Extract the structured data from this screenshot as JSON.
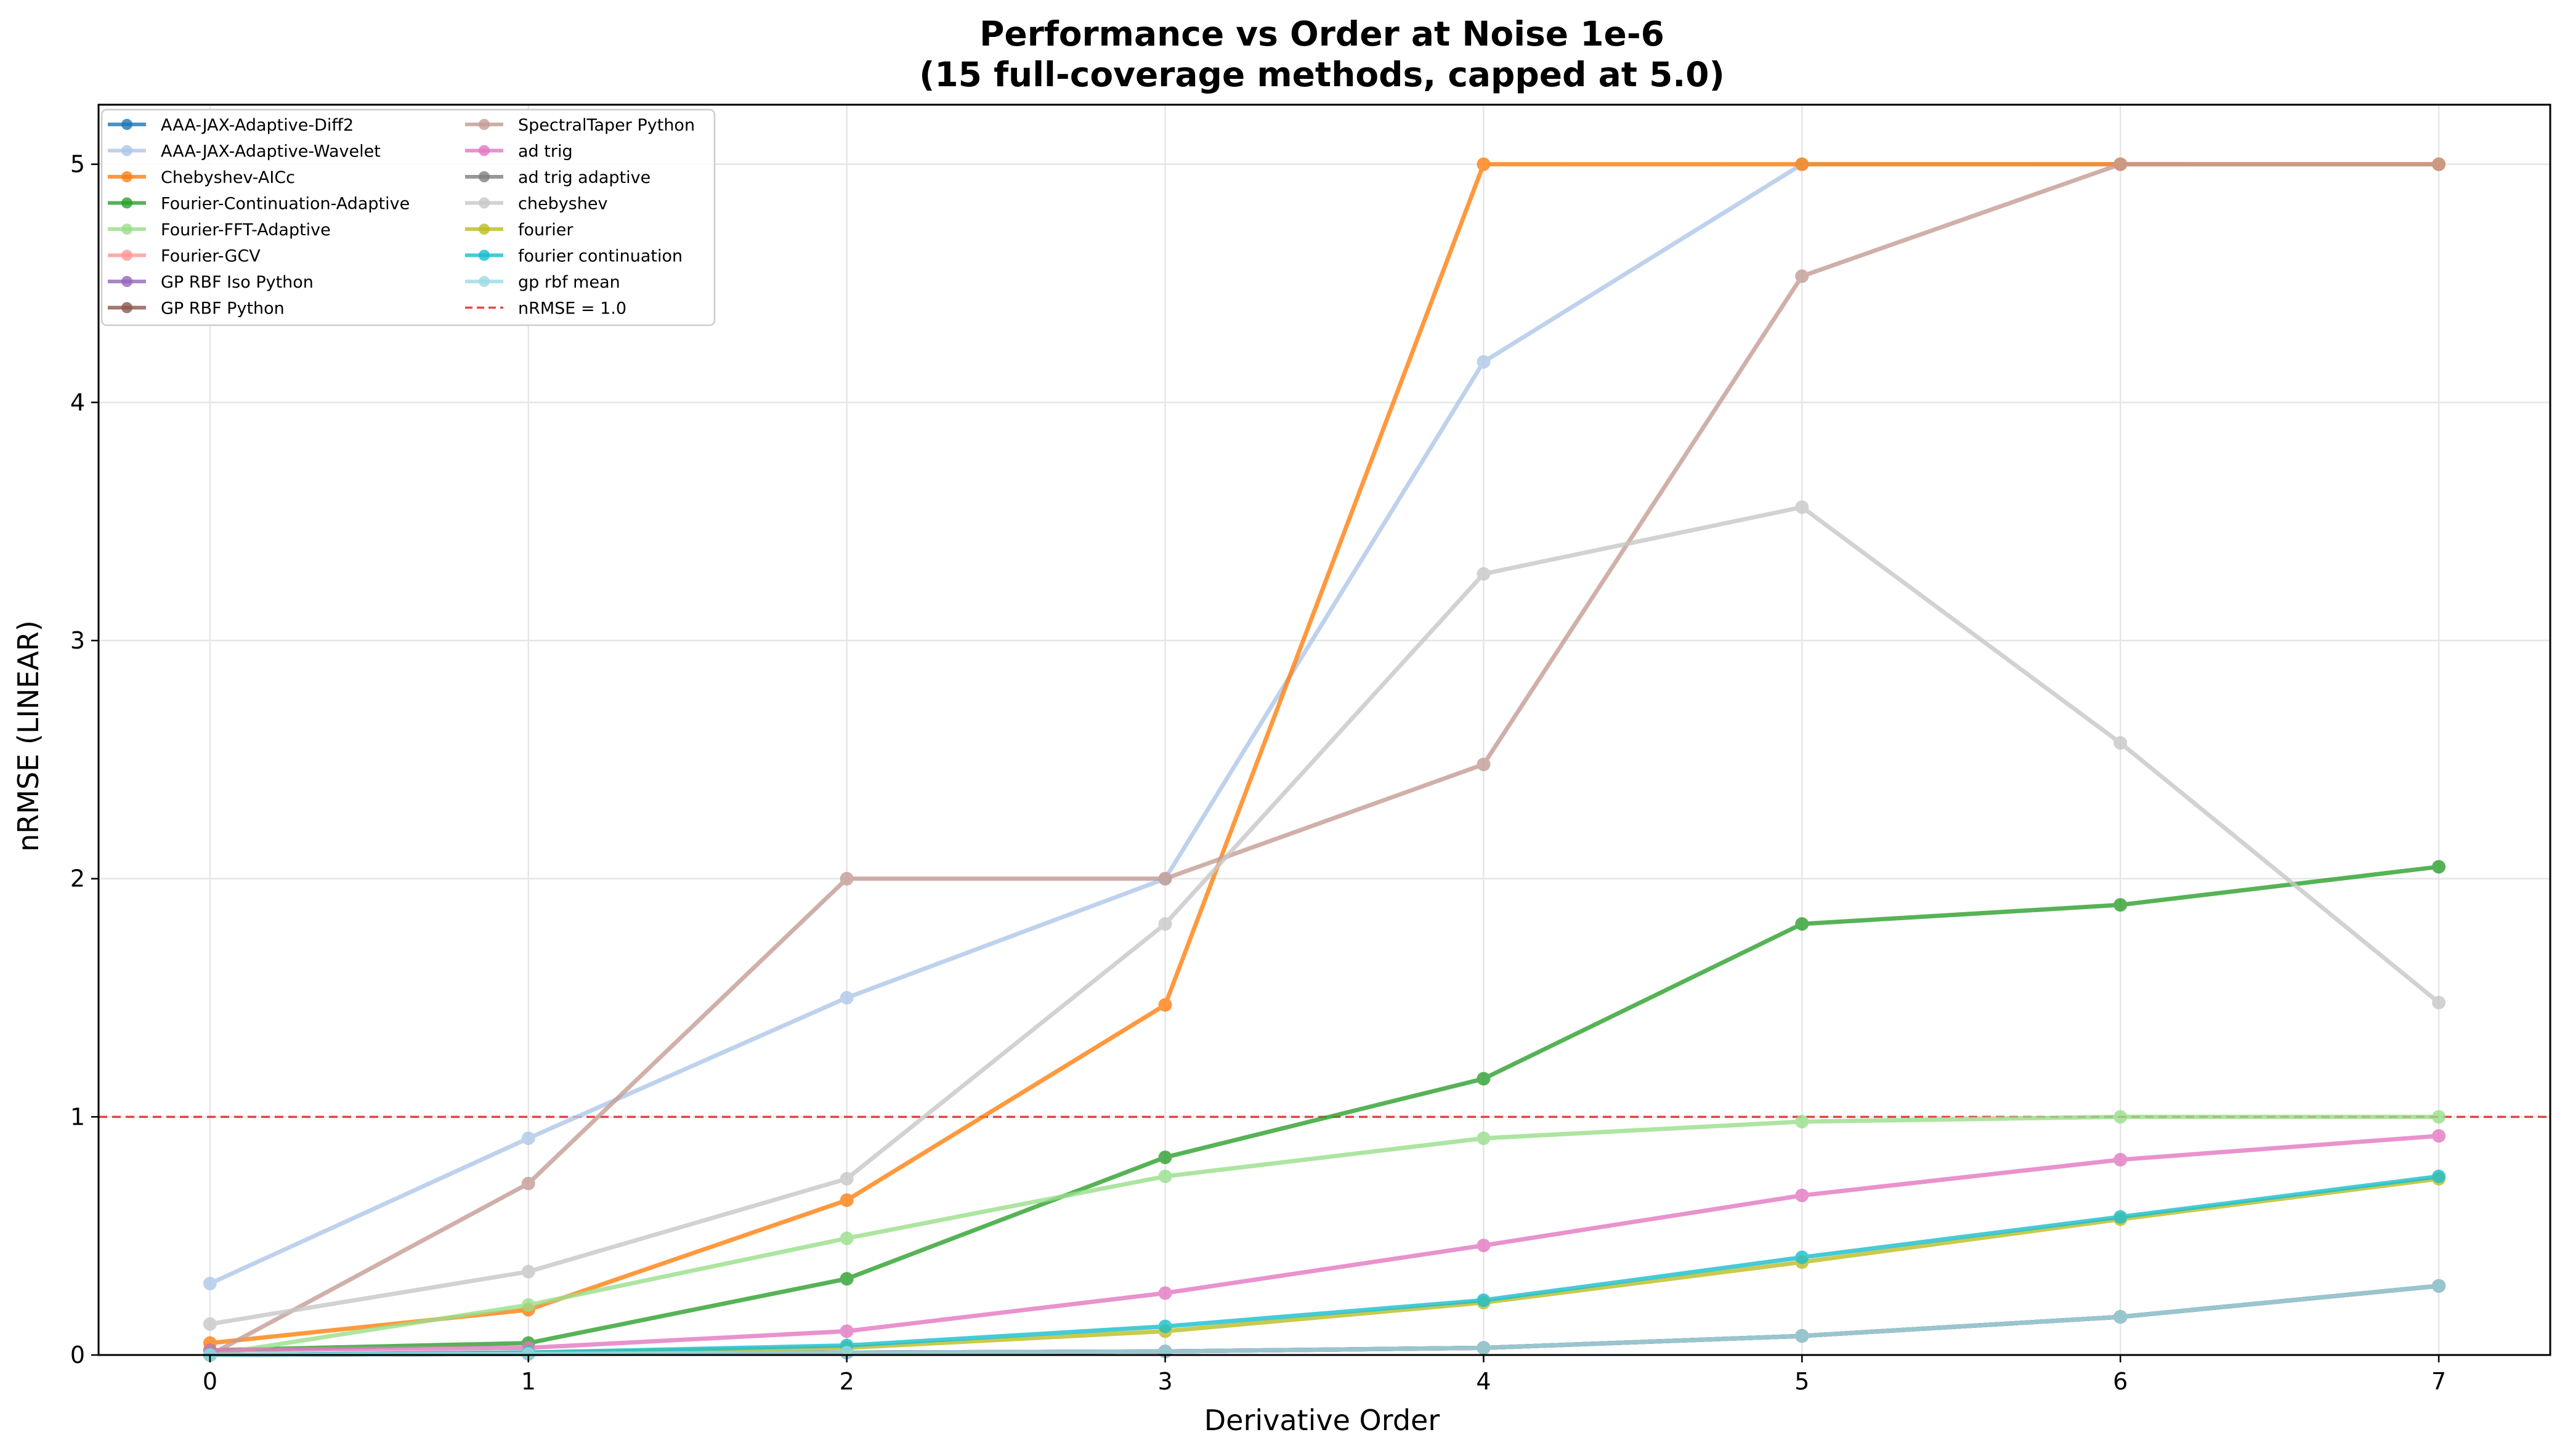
{
  "chart_data": {
    "type": "line",
    "title": "Performance vs Order at Noise 1e-6",
    "subtitle": "(15 full-coverage methods, capped at 5.0)",
    "xlabel": "Derivative Order",
    "ylabel": "nRMSE (LINEAR)",
    "x": [
      0,
      1,
      2,
      3,
      4,
      5,
      6,
      7
    ],
    "xlim": [
      -0.35,
      7.35
    ],
    "ylim": [
      0,
      5.25
    ],
    "x_ticks": [
      "0",
      "1",
      "2",
      "3",
      "4",
      "5",
      "6",
      "7"
    ],
    "y_ticks": [
      "0",
      "1",
      "2",
      "3",
      "4",
      "5"
    ],
    "grid": true,
    "legend_position": "upper-left",
    "reference_line": {
      "name": "nRMSE = 1.0",
      "y": 1.0,
      "color": "#e41a1c",
      "style": "dashed"
    },
    "series": [
      {
        "name": "AAA-JAX-Adaptive-Diff2",
        "color": "#1f77b4",
        "values": [
          0.0,
          0.01,
          0.01,
          0.015,
          0.03,
          0.08,
          0.16,
          0.29
        ]
      },
      {
        "name": "AAA-JAX-Adaptive-Wavelet",
        "color": "#aec7e8",
        "values": [
          0.3,
          0.91,
          1.5,
          2.0,
          4.17,
          5.0,
          5.0,
          5.0
        ]
      },
      {
        "name": "Chebyshev-AICc",
        "color": "#ff7f0e",
        "values": [
          0.05,
          0.19,
          0.65,
          1.47,
          5.0,
          5.0,
          5.0,
          5.0
        ]
      },
      {
        "name": "Fourier-Continuation-Adaptive",
        "color": "#2ca02c",
        "values": [
          0.02,
          0.05,
          0.32,
          0.83,
          1.16,
          1.81,
          1.89,
          2.05
        ]
      },
      {
        "name": "Fourier-FFT-Adaptive",
        "color": "#98df8a",
        "values": [
          0.0,
          0.21,
          0.49,
          0.75,
          0.91,
          0.98,
          1.0,
          1.0
        ]
      },
      {
        "name": "Fourier-GCV",
        "color": "#ff9896",
        "values": [
          0.0,
          0.005,
          0.01,
          0.015,
          0.03,
          0.08,
          0.16,
          0.29
        ]
      },
      {
        "name": "GP RBF Iso Python",
        "color": "#9467bd",
        "values": [
          0.0,
          0.005,
          0.01,
          0.015,
          0.03,
          0.08,
          0.16,
          0.29
        ]
      },
      {
        "name": "GP RBF Python",
        "color": "#8c564b",
        "values": [
          0.0,
          0.005,
          0.01,
          0.015,
          0.03,
          0.08,
          0.16,
          0.29
        ]
      },
      {
        "name": "SpectralTaper Python",
        "color": "#c49c94",
        "values": [
          0.0,
          0.72,
          2.0,
          2.0,
          2.48,
          4.53,
          5.0,
          5.0
        ]
      },
      {
        "name": "ad trig",
        "color": "#e377c2",
        "values": [
          0.02,
          0.03,
          0.1,
          0.26,
          0.46,
          0.67,
          0.82,
          0.92
        ]
      },
      {
        "name": "ad trig adaptive",
        "color": "#7f7f7f",
        "values": [
          0.0,
          0.005,
          0.01,
          0.015,
          0.03,
          0.08,
          0.16,
          0.29
        ]
      },
      {
        "name": "chebyshev",
        "color": "#c7c7c7",
        "values": [
          0.13,
          0.35,
          0.74,
          1.81,
          3.28,
          3.56,
          2.57,
          1.48
        ]
      },
      {
        "name": "fourier",
        "color": "#bcbd22",
        "values": [
          0.0,
          0.01,
          0.03,
          0.1,
          0.22,
          0.39,
          0.57,
          0.74
        ]
      },
      {
        "name": "fourier continuation",
        "color": "#17becf",
        "values": [
          0.0,
          0.01,
          0.04,
          0.12,
          0.23,
          0.41,
          0.58,
          0.75
        ]
      },
      {
        "name": "gp rbf mean",
        "color": "#9edae5",
        "values": [
          0.0,
          0.005,
          0.01,
          0.015,
          0.03,
          0.08,
          0.16,
          0.29
        ]
      }
    ]
  }
}
